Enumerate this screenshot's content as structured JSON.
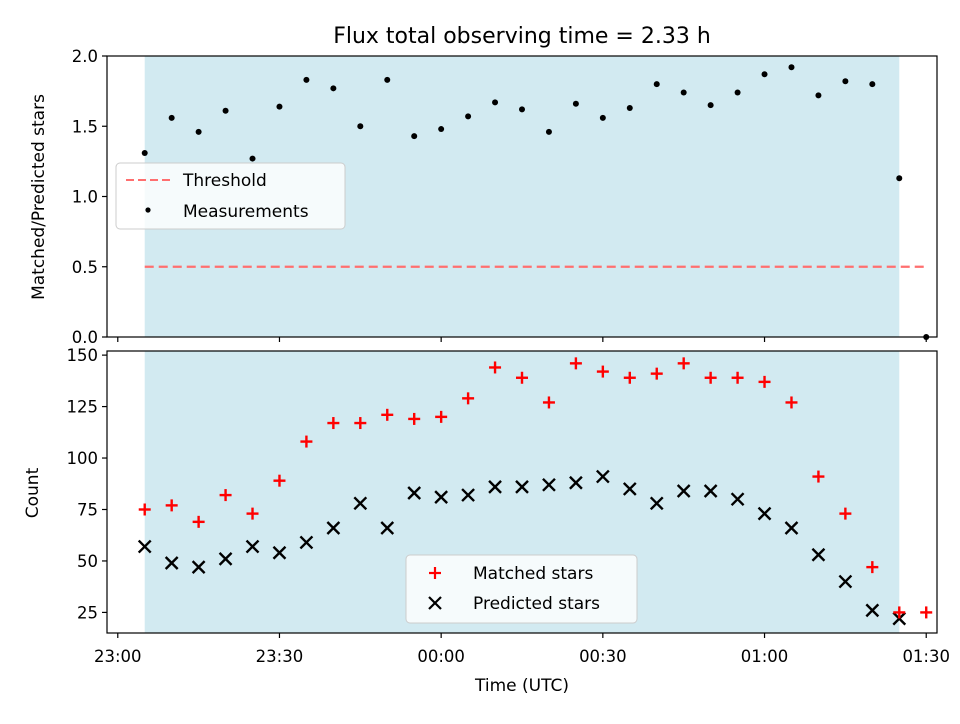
{
  "chart_data": [
    {
      "type": "scatter",
      "title": "Flux total observing time = 2.33 h",
      "xlabel": "",
      "ylabel": "Matched/Predicted stars",
      "xlim": [
        "22:58",
        "01:32"
      ],
      "ylim": [
        0,
        2.0
      ],
      "yticks": [
        "0.0",
        "0.5",
        "1.0",
        "1.5",
        "2.0"
      ],
      "shaded_span": [
        "23:05",
        "01:25"
      ],
      "colors": {
        "shade": "#add8e6",
        "threshold": "#ff6f6f",
        "measurements": "#000000"
      },
      "legend": {
        "placement": "center-left",
        "entries": [
          "Threshold",
          "Measurements"
        ]
      },
      "threshold": {
        "name": "Threshold",
        "y": 0.5,
        "x_range": [
          "23:05",
          "01:30"
        ]
      },
      "series": [
        {
          "name": "Measurements",
          "x": [
            "23:05",
            "23:10",
            "23:15",
            "23:20",
            "23:25",
            "23:30",
            "23:35",
            "23:40",
            "23:45",
            "23:50",
            "23:55",
            "00:00",
            "00:05",
            "00:10",
            "00:15",
            "00:20",
            "00:25",
            "00:30",
            "00:35",
            "00:40",
            "00:45",
            "00:50",
            "00:55",
            "01:00",
            "01:05",
            "01:10",
            "01:15",
            "01:20",
            "01:25",
            "01:30"
          ],
          "y": [
            1.31,
            1.56,
            1.46,
            1.61,
            1.27,
            1.64,
            1.83,
            1.77,
            1.5,
            1.83,
            1.43,
            1.48,
            1.57,
            1.67,
            1.62,
            1.46,
            1.66,
            1.56,
            1.63,
            1.8,
            1.74,
            1.65,
            1.74,
            1.87,
            1.92,
            1.72,
            1.82,
            1.8,
            1.13,
            0.0
          ]
        }
      ]
    },
    {
      "type": "scatter",
      "title": "",
      "xlabel": "Time (UTC)",
      "ylabel": "Count",
      "xlim": [
        "22:58",
        "01:32"
      ],
      "ylim": [
        15,
        152
      ],
      "yticks": [
        "25",
        "50",
        "75",
        "100",
        "125",
        "150"
      ],
      "xticks": [
        "23:00",
        "23:30",
        "00:00",
        "00:30",
        "01:00",
        "01:30"
      ],
      "shaded_span": [
        "23:05",
        "01:25"
      ],
      "colors": {
        "shade": "#add8e6",
        "matched": "#ff0000",
        "predicted": "#000000"
      },
      "legend": {
        "placement": "lower-center",
        "entries": [
          "Matched stars",
          "Predicted stars"
        ]
      },
      "series": [
        {
          "name": "Matched stars",
          "x": [
            "23:05",
            "23:10",
            "23:15",
            "23:20",
            "23:25",
            "23:30",
            "23:35",
            "23:40",
            "23:45",
            "23:50",
            "23:55",
            "00:00",
            "00:05",
            "00:10",
            "00:15",
            "00:20",
            "00:25",
            "00:30",
            "00:35",
            "00:40",
            "00:45",
            "00:50",
            "00:55",
            "01:00",
            "01:05",
            "01:10",
            "01:15",
            "01:20",
            "01:25",
            "01:30"
          ],
          "y": [
            75,
            77,
            69,
            82,
            73,
            89,
            108,
            117,
            117,
            121,
            119,
            120,
            129,
            144,
            139,
            127,
            146,
            142,
            139,
            141,
            146,
            139,
            139,
            137,
            127,
            91,
            73,
            47,
            25,
            25
          ]
        },
        {
          "name": "Predicted stars",
          "x": [
            "23:05",
            "23:10",
            "23:15",
            "23:20",
            "23:25",
            "23:30",
            "23:35",
            "23:40",
            "23:45",
            "23:50",
            "23:55",
            "00:00",
            "00:05",
            "00:10",
            "00:15",
            "00:20",
            "00:25",
            "00:30",
            "00:35",
            "00:40",
            "00:45",
            "00:50",
            "00:55",
            "01:00",
            "01:05",
            "01:10",
            "01:15",
            "01:20",
            "01:25"
          ],
          "y": [
            57,
            49,
            47,
            51,
            57,
            54,
            59,
            66,
            78,
            66,
            83,
            81,
            82,
            86,
            86,
            87,
            88,
            91,
            85,
            78,
            84,
            84,
            80,
            73,
            66,
            53,
            40,
            26,
            22
          ]
        }
      ]
    }
  ]
}
